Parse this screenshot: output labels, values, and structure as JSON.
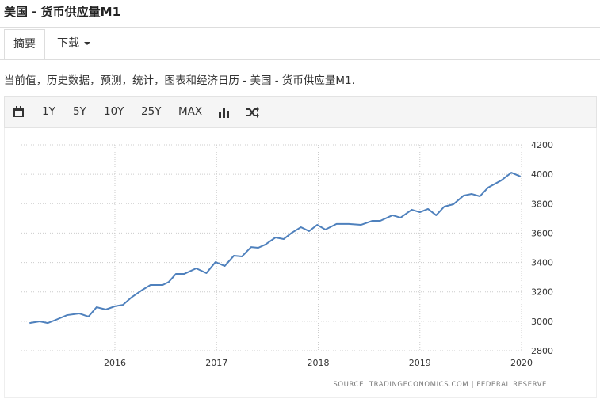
{
  "header": {
    "title": "美国 - 货币供应量M1"
  },
  "tabs": [
    "摘要",
    "下载"
  ],
  "description": "当前值，历史数据，预测，统计，图表和经济日历 - 美国 - 货币供应量M1.",
  "toolbar": [
    "1Y",
    "5Y",
    "10Y",
    "25Y",
    "MAX"
  ],
  "chart_data": {
    "type": "line",
    "color": "#4f81bd",
    "grid": true,
    "source": "SOURCE: TRADINGECONOMICS.COM | FEDERAL RESERVE",
    "x": [
      2015.16,
      2015.26,
      2015.34,
      2015.42,
      2015.53,
      2015.65,
      2015.74,
      2015.82,
      2015.91,
      2016.0,
      2016.08,
      2016.16,
      2016.26,
      2016.35,
      2016.47,
      2016.53,
      2016.6,
      2016.68,
      2016.8,
      2016.9,
      2016.99,
      2017.08,
      2017.17,
      2017.25,
      2017.34,
      2017.41,
      2017.48,
      2017.58,
      2017.66,
      2017.74,
      2017.83,
      2017.91,
      2017.99,
      2018.07,
      2018.18,
      2018.3,
      2018.42,
      2018.53,
      2018.61,
      2018.73,
      2018.81,
      2018.92,
      2019.0,
      2019.08,
      2019.16,
      2019.24,
      2019.33,
      2019.43,
      2019.51,
      2019.59,
      2019.67,
      2019.8,
      2019.9,
      2019.99
    ],
    "values": [
      2988,
      2999,
      2988,
      3010,
      3042,
      3053,
      3032,
      3096,
      3080,
      3102,
      3112,
      3161,
      3209,
      3247,
      3247,
      3268,
      3322,
      3322,
      3360,
      3328,
      3403,
      3376,
      3446,
      3441,
      3505,
      3500,
      3522,
      3570,
      3559,
      3602,
      3640,
      3613,
      3656,
      3624,
      3662,
      3662,
      3656,
      3683,
      3683,
      3721,
      3705,
      3759,
      3742,
      3764,
      3721,
      3780,
      3796,
      3855,
      3866,
      3850,
      3909,
      3958,
      4011,
      3985
    ],
    "xlim": [
      2015.08,
      2020.0
    ],
    "xticks": [
      2016,
      2017,
      2018,
      2019,
      2020
    ],
    "ylim": [
      2800,
      4200
    ],
    "yticks": [
      2800,
      3000,
      3200,
      3400,
      3600,
      3800,
      4000,
      4200
    ]
  }
}
